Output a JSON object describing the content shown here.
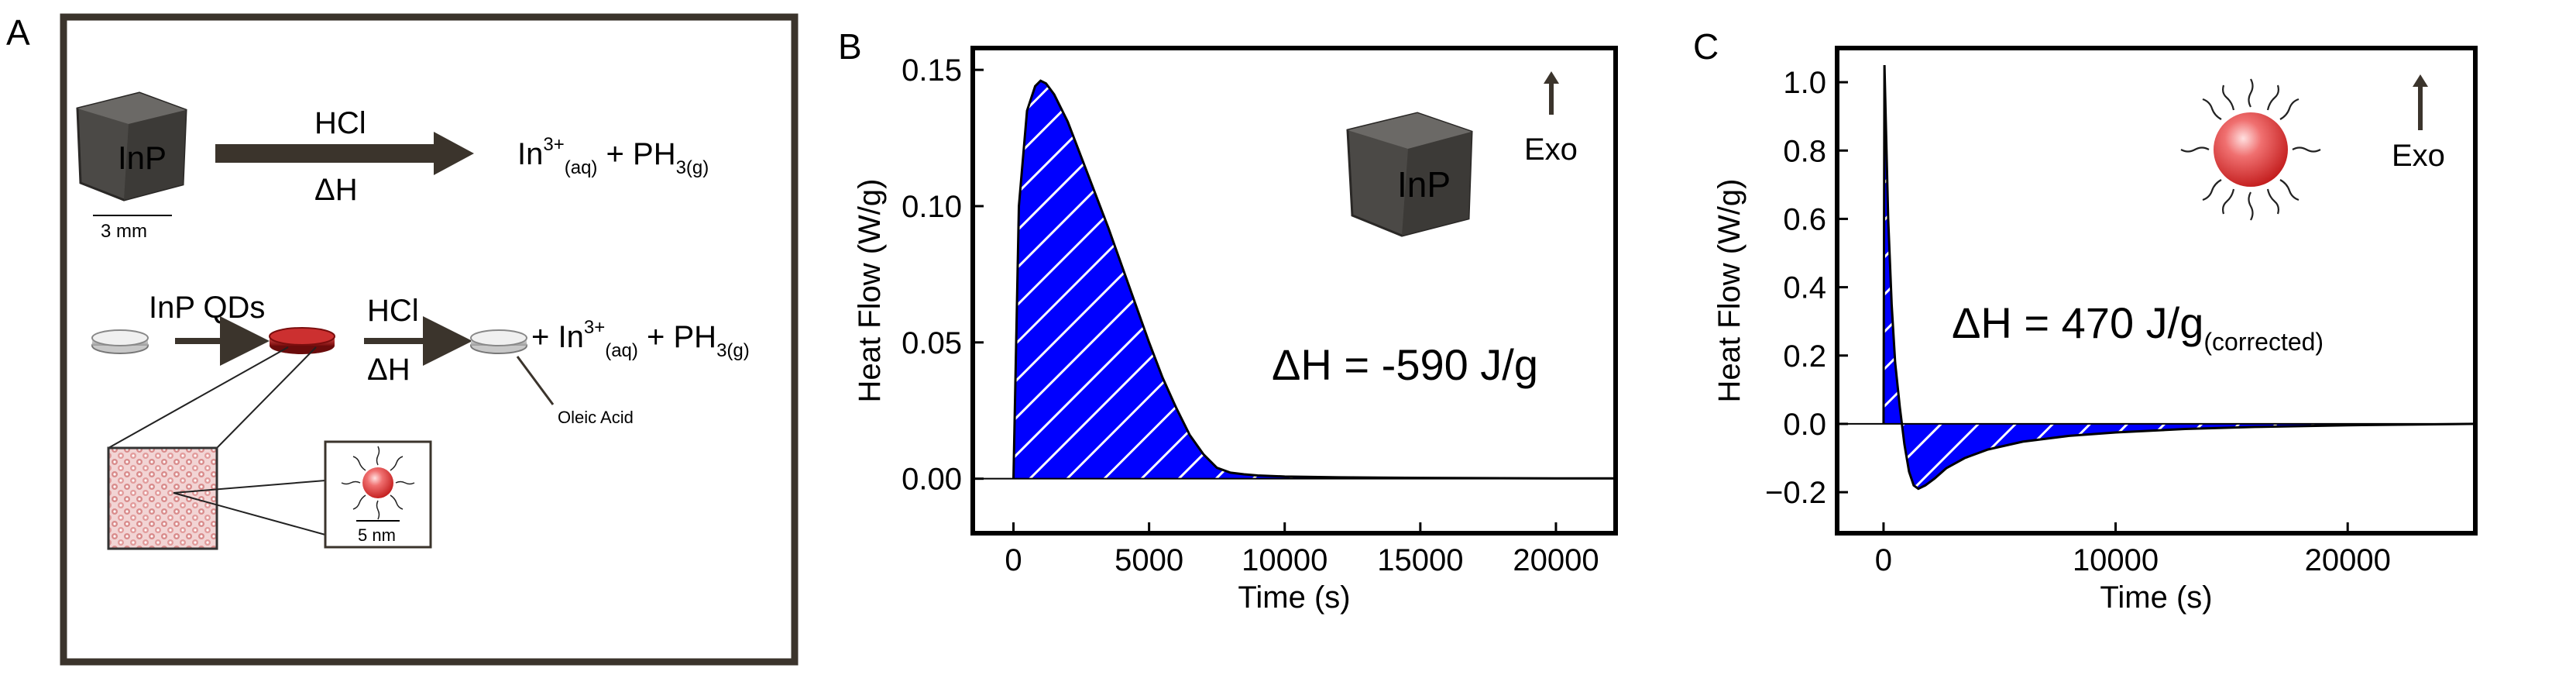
{
  "panel_a": {
    "label": "A",
    "bulk_inp_label": "InP",
    "scale_bulk": "3 mm",
    "reaction_reagent": "HCl",
    "reaction_enthalpy": "ΔH",
    "products_bulk": {
      "in": "In",
      "in_sup": "3+",
      "in_sub": "(aq)",
      "plus": " + PH",
      "ph_sub": "3(g)"
    },
    "qd_label": "InP QDs",
    "reaction_reagent_2": "HCl",
    "reaction_enthalpy_2": "ΔH",
    "products_qd": {
      "plus_in": "+ In",
      "in_sup": "3+",
      "in_sub": "(aq)",
      "plus": " + PH",
      "ph_sub": "3(g)"
    },
    "oleic_label": "Oleic Acid",
    "scale_qd": "5 nm"
  },
  "chart_data": [
    {
      "panel": "B",
      "type": "area",
      "xlabel": "Time (s)",
      "ylabel": "Heat Flow (W/g)",
      "xlim": [
        -1500,
        22200
      ],
      "ylim": [
        -0.02,
        0.158
      ],
      "xticks": [
        0,
        5000,
        10000,
        15000,
        20000
      ],
      "xtick_labels": [
        "0",
        "5000",
        "10000",
        "15000",
        "20000"
      ],
      "yticks": [
        0.0,
        0.05,
        0.1,
        0.15
      ],
      "ytick_labels": [
        "0.00",
        "0.05",
        "0.10",
        "0.15"
      ],
      "annotation": "ΔH = -590 J/g",
      "exo_label": "Exo",
      "inset_label": "InP",
      "fill_color": "#0000ff",
      "x": [
        0,
        200,
        500,
        800,
        1000,
        1200,
        1500,
        2000,
        2500,
        3000,
        3500,
        4000,
        4500,
        5000,
        5500,
        6000,
        6500,
        7000,
        7500,
        8000,
        8500,
        9000,
        10000,
        12000,
        15000,
        18000,
        20000,
        22200
      ],
      "y": [
        0.0,
        0.1,
        0.135,
        0.144,
        0.146,
        0.145,
        0.141,
        0.131,
        0.118,
        0.105,
        0.092,
        0.078,
        0.064,
        0.05,
        0.037,
        0.026,
        0.016,
        0.009,
        0.004,
        0.0022,
        0.0016,
        0.0012,
        0.0008,
        0.0005,
        0.0003,
        0.0002,
        0.0001,
        0.0001
      ]
    },
    {
      "panel": "C",
      "type": "area",
      "xlabel": "Time (s)",
      "ylabel": "Heat Flow (W/g)",
      "xlim": [
        -2000,
        25500
      ],
      "ylim": [
        -0.32,
        1.1
      ],
      "xticks": [
        0,
        10000,
        20000
      ],
      "xtick_labels": [
        "0",
        "10000",
        "20000"
      ],
      "yticks": [
        -0.2,
        0.0,
        0.2,
        0.4,
        0.6,
        0.8,
        1.0
      ],
      "ytick_labels": [
        "−0.2",
        "0.0",
        "0.2",
        "0.4",
        "0.6",
        "0.8",
        "1.0"
      ],
      "annotation": "ΔH = 470 J/g",
      "annotation_sub": "(corrected)",
      "exo_label": "Exo",
      "fill_color": "#0000ff",
      "x": [
        0,
        40,
        100,
        200,
        350,
        500,
        700,
        900,
        1100,
        1300,
        1500,
        1800,
        2200,
        2700,
        3500,
        4500,
        6000,
        8000,
        10000,
        13000,
        16000,
        20000,
        23000,
        25500
      ],
      "y": [
        0.0,
        1.05,
        0.88,
        0.6,
        0.35,
        0.18,
        0.05,
        -0.06,
        -0.14,
        -0.18,
        -0.19,
        -0.18,
        -0.16,
        -0.13,
        -0.1,
        -0.075,
        -0.052,
        -0.035,
        -0.025,
        -0.015,
        -0.009,
        -0.004,
        -0.002,
        0.0
      ]
    }
  ],
  "panel_labels": {
    "b": "B",
    "c": "C"
  }
}
